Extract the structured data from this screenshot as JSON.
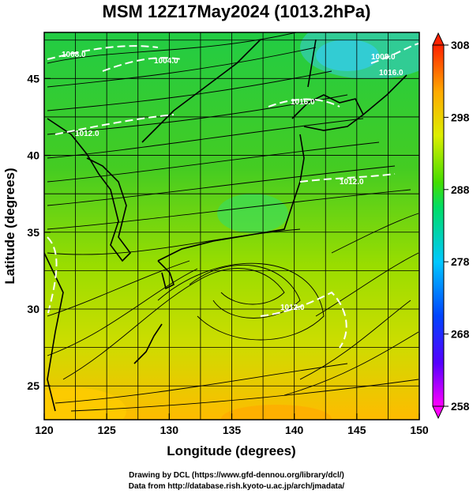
{
  "title": "MSM 12Z17May2024 (1013.2hPa)",
  "xlabel": "Longitude (degrees)",
  "ylabel": "Latitude  (degrees)",
  "xticks": [
    "120",
    "125",
    "130",
    "135",
    "140",
    "145",
    "150"
  ],
  "yticks": [
    "25",
    "30",
    "35",
    "40",
    "45"
  ],
  "colorbar": {
    "ticks": [
      "308",
      "298",
      "288",
      "278",
      "268",
      "258"
    ],
    "range": [
      258,
      308
    ]
  },
  "contour_labels": [
    "1004.0",
    "1008.0",
    "1012.0",
    "1016.0",
    "1012.0",
    "1016.0",
    "1012.0",
    "1008.0"
  ],
  "credits": {
    "line1": "Drawing by DCL (https://www.gfd-dennou.org/library/dcl/)",
    "line2": "Data from http://database.rish.kyoto-u.ac.jp/arch/jmadata/"
  },
  "colors": {
    "field_green": "#33cc33",
    "field_yellow": "#ddee00",
    "field_orange": "#ffbb00",
    "field_cyan": "#33ccee",
    "contour": "#ffffff",
    "streamline": "#000000"
  }
}
